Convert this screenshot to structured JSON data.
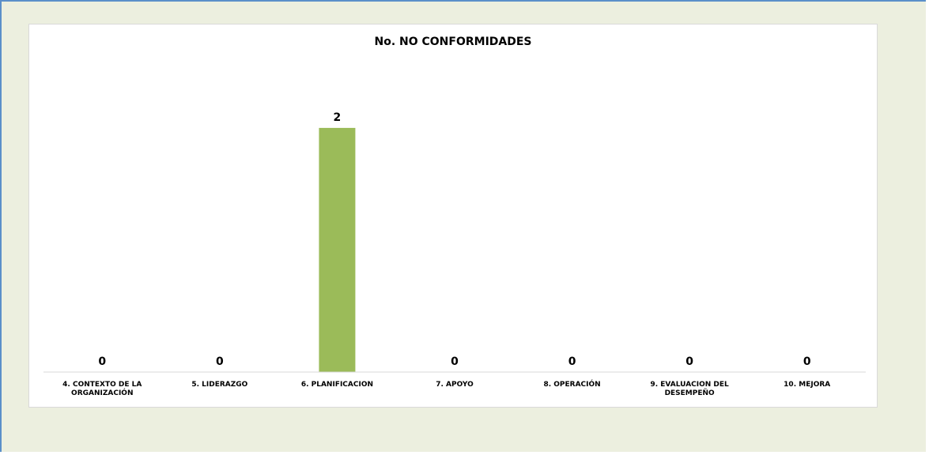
{
  "chart_data": {
    "type": "bar",
    "title": "No. NO CONFORMIDADES",
    "categories": [
      [
        "4. CONTEXTO DE LA",
        "ORGANIZACIÓN"
      ],
      [
        "5. LIDERAZGO"
      ],
      [
        "6. PLANIFICACION"
      ],
      [
        "7. APOYO"
      ],
      [
        "8. OPERACIÓN"
      ],
      [
        "9. EVALUACION DEL",
        "DESEMPEÑO"
      ],
      [
        "10. MEJORA"
      ]
    ],
    "values": [
      0,
      0,
      2,
      0,
      0,
      0,
      0
    ],
    "data_labels": [
      "0",
      "0",
      "2",
      "0",
      "0",
      "0",
      "0"
    ],
    "ylim": [
      0,
      2.2
    ],
    "grid": false,
    "legend": "none",
    "colors": {
      "bar": "#9bbb59",
      "axis": "#d9d9d9",
      "frame_background": "#ecefdf",
      "frame_border": "#5b8fc9"
    }
  }
}
